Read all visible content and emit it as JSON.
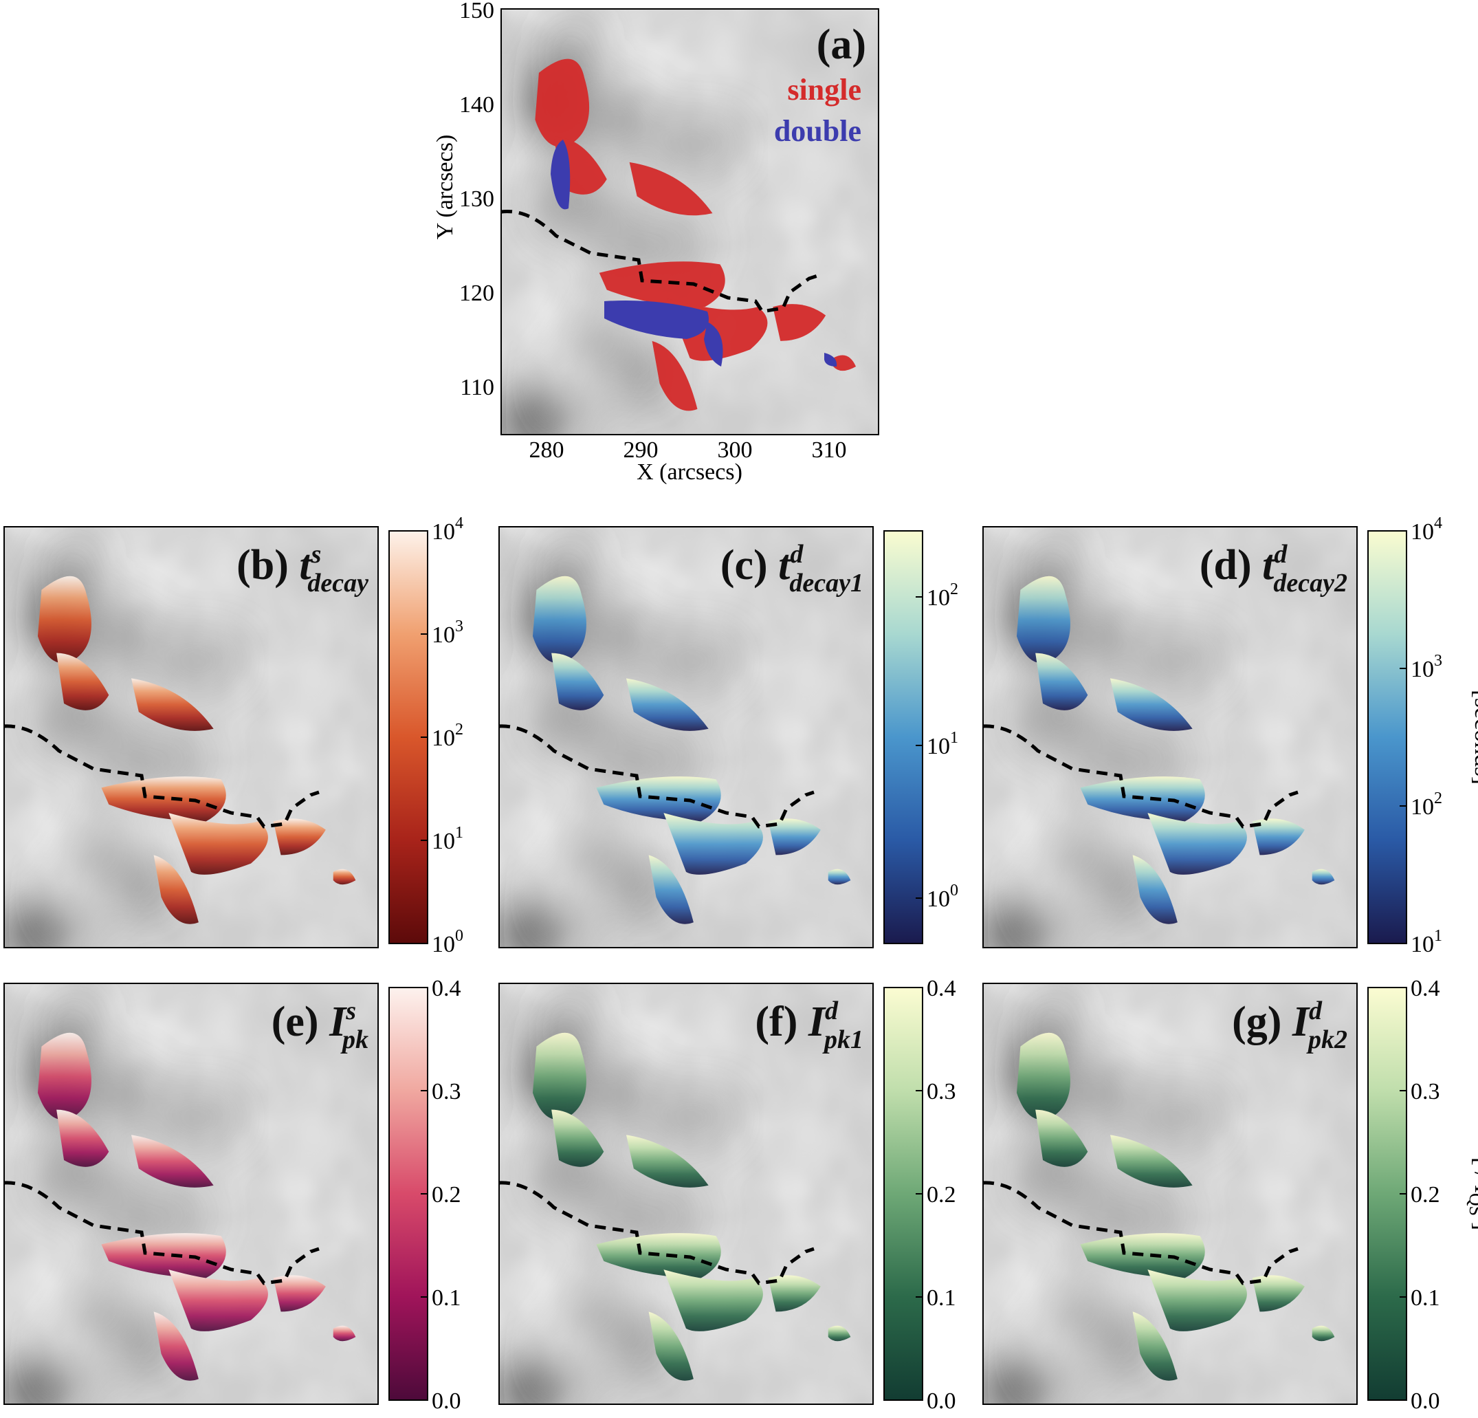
{
  "figure": {
    "panel_a": {
      "tag": "(a)",
      "legend": [
        {
          "label": "single",
          "color": "#d42b2b"
        },
        {
          "label": "double",
          "color": "#3c3cae"
        }
      ],
      "xlabel": "X (arcsecs)",
      "ylabel": "Y (arcsecs)",
      "xticks": [
        "280",
        "290",
        "300",
        "310"
      ],
      "yticks": [
        "110",
        "120",
        "130",
        "140",
        "150"
      ]
    },
    "panels": [
      {
        "id": "b",
        "tag": "(b)",
        "symbol": "t",
        "sup": "s",
        "sub": "decay",
        "cmap": "orange"
      },
      {
        "id": "c",
        "tag": "(c)",
        "symbol": "t",
        "sup": "d",
        "sub": "decay1",
        "cmap": "blue"
      },
      {
        "id": "d",
        "tag": "(d)",
        "symbol": "t",
        "sup": "d",
        "sub": "decay2",
        "cmap": "blue"
      },
      {
        "id": "e",
        "tag": "(e)",
        "symbol": "I",
        "sup": "s",
        "sub": "pk",
        "cmap": "magenta"
      },
      {
        "id": "f",
        "tag": "(f)",
        "symbol": "I",
        "sup": "d",
        "sub": "pk1",
        "cmap": "green"
      },
      {
        "id": "g",
        "tag": "(g)",
        "symbol": "I",
        "sup": "d",
        "sub": "pk2",
        "cmap": "green"
      }
    ],
    "colorbars": {
      "b": {
        "ticks": [
          {
            "base": "10",
            "exp": "4"
          },
          {
            "base": "10",
            "exp": "3"
          },
          {
            "base": "10",
            "exp": "2"
          },
          {
            "base": "10",
            "exp": "1"
          },
          {
            "base": "10",
            "exp": "0"
          }
        ]
      },
      "c": {
        "ticks": [
          {
            "base": "10",
            "exp": "2"
          },
          {
            "base": "10",
            "exp": "1"
          },
          {
            "base": "10",
            "exp": "0"
          }
        ]
      },
      "d": {
        "ticks": [
          {
            "base": "10",
            "exp": "4"
          },
          {
            "base": "10",
            "exp": "3"
          },
          {
            "base": "10",
            "exp": "2"
          },
          {
            "base": "10",
            "exp": "1"
          }
        ],
        "unit": "[seconds]"
      },
      "e": {
        "ticks": [
          "0.4",
          "0.3",
          "0.2",
          "0.1",
          "0.0"
        ]
      },
      "f": {
        "ticks": [
          "0.4",
          "0.3",
          "0.2",
          "0.1",
          "0.0"
        ]
      },
      "g": {
        "ticks": [
          "0.4",
          "0.3",
          "0.2",
          "0.1",
          "0.0"
        ],
        "unit": "[ / I",
        "unit_sub": "QS",
        "unit_end": " ]"
      }
    },
    "colors": {
      "orange": [
        "#5c0a0a",
        "#a8231a",
        "#d9572b",
        "#f0a070",
        "#fdf2ea"
      ],
      "blue": [
        "#1a1a4d",
        "#2a5aa6",
        "#4a96cc",
        "#a8d8d0",
        "#fafcd0"
      ],
      "magenta": [
        "#4d0a3a",
        "#a0145a",
        "#d84a6a",
        "#f0a8a0",
        "#fdf2ee"
      ],
      "green": [
        "#123c32",
        "#2c6a4a",
        "#6ea876",
        "#c0deac",
        "#fbfcd2"
      ]
    }
  }
}
